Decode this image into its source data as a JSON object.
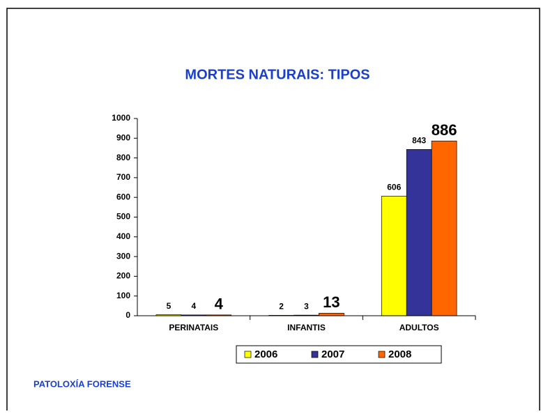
{
  "chart_data": {
    "type": "bar",
    "title": "MORTES NATURAIS: TIPOS",
    "categories": [
      "PERINATAIS",
      "INFANTIS",
      "ADULTOS"
    ],
    "series": [
      {
        "name": "2006",
        "color": "#ffff00",
        "values": [
          5,
          2,
          606
        ]
      },
      {
        "name": "2007",
        "color": "#333399",
        "values": [
          4,
          3,
          843
        ]
      },
      {
        "name": "2008",
        "color": "#ff6600",
        "values": [
          4,
          13,
          886
        ]
      }
    ],
    "ylim": [
      0,
      1000
    ],
    "yticks": [
      0,
      100,
      200,
      300,
      400,
      500,
      600,
      700,
      800,
      900,
      1000
    ],
    "legend": "bottom"
  },
  "footer": "PATOLOXÍA FORENSE"
}
